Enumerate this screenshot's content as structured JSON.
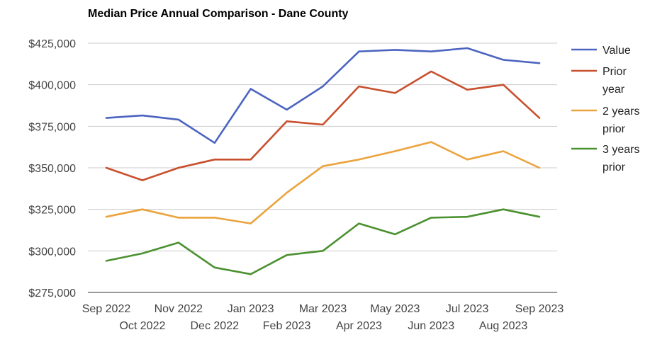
{
  "chart_data": {
    "type": "line",
    "title": "Median Price Annual Comparison - Dane County",
    "xlabel": "",
    "ylabel": "",
    "ylim": [
      275000,
      425000
    ],
    "y_ticks": [
      275000,
      300000,
      325000,
      350000,
      375000,
      400000,
      425000
    ],
    "y_tick_labels": [
      "$275,000",
      "$300,000",
      "$325,000",
      "$350,000",
      "$375,000",
      "$400,000",
      "$425,000"
    ],
    "categories": [
      "Sep 2022",
      "Oct 2022",
      "Nov 2022",
      "Dec 2022",
      "Jan 2023",
      "Feb 2023",
      "Mar 2023",
      "Apr 2023",
      "May 2023",
      "Jun 2023",
      "Jul 2023",
      "Aug 2023",
      "Sep 2023"
    ],
    "grid": "horizontal",
    "legend_position": "right",
    "series": [
      {
        "name": "Value",
        "color": "#4c64c0",
        "values": [
          380000,
          381500,
          379000,
          365000,
          397500,
          385000,
          399000,
          420000,
          421000,
          420000,
          422000,
          415000,
          413000
        ]
      },
      {
        "name": "Prior year",
        "color": "#c8502e",
        "values": [
          350000,
          342500,
          350000,
          355000,
          355000,
          378000,
          376000,
          399000,
          395000,
          408000,
          397000,
          400000,
          380000
        ]
      },
      {
        "name": "2 years prior",
        "color": "#eba33d",
        "values": [
          320500,
          325000,
          320000,
          320000,
          316500,
          335000,
          351000,
          355000,
          360000,
          365500,
          355000,
          360000,
          350000
        ]
      },
      {
        "name": "3 years prior",
        "color": "#4b9130",
        "values": [
          294000,
          298500,
          305000,
          290000,
          286000,
          297500,
          300000,
          316500,
          310000,
          320000,
          320500,
          325000,
          320500
        ]
      }
    ],
    "legend_lines": [
      [
        "Value"
      ],
      [
        "Prior",
        "year"
      ],
      [
        "2 years",
        "prior"
      ],
      [
        "3 years",
        "prior"
      ]
    ]
  }
}
